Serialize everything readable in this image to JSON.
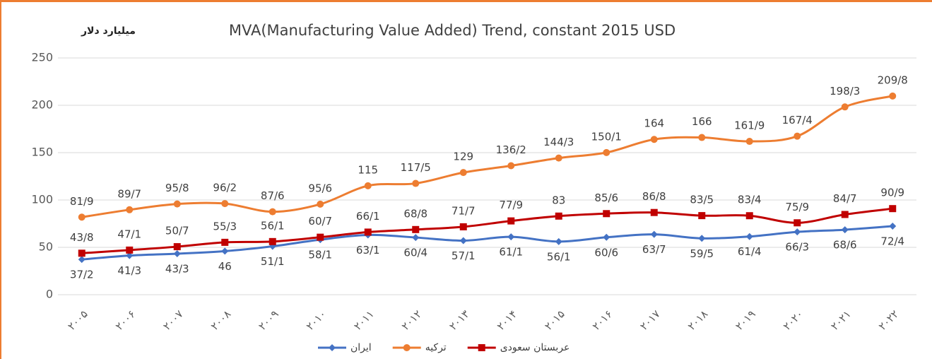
{
  "chart_data": {
    "type": "line",
    "title": "MVA(Manufacturing Value Added) Trend, constant 2015 USD",
    "y_label": "میلیارد دلار",
    "categories": [
      "۲۰۰۵",
      "۲۰۰۶",
      "۲۰۰۷",
      "۲۰۰۸",
      "۲۰۰۹",
      "۲۰۱۰",
      "۲۰۱۱",
      "۲۰۱۲",
      "۲۰۱۳",
      "۲۰۱۴",
      "۲۰۱۵",
      "۲۰۱۶",
      "۲۰۱۷",
      "۲۰۱۸",
      "۲۰۱۹",
      "۲۰۲۰",
      "۲۰۲۱",
      "۲۰۲۲"
    ],
    "series": [
      {
        "name": "ایران",
        "color": "#4472c4",
        "marker": "diamond",
        "label_position": "below",
        "values": [
          37.2,
          41.3,
          43.3,
          46,
          51.1,
          58.1,
          63.1,
          60.4,
          57.1,
          61.1,
          56.1,
          60.6,
          63.7,
          59.5,
          61.4,
          66.3,
          68.6,
          72.4
        ],
        "value_labels": [
          "37/2",
          "41/3",
          "43/3",
          "46",
          "51/1",
          "58/1",
          "63/1",
          "60/4",
          "57/1",
          "61/1",
          "56/1",
          "60/6",
          "63/7",
          "59/5",
          "61/4",
          "66/3",
          "68/6",
          "72/4"
        ]
      },
      {
        "name": "ترکیه",
        "color": "#ed7d31",
        "marker": "circle",
        "label_position": "above",
        "values": [
          81.9,
          89.7,
          95.8,
          96.2,
          87.6,
          95.6,
          115,
          117.5,
          129,
          136.2,
          144.3,
          150.1,
          164,
          166,
          161.9,
          167.4,
          198.3,
          209.8
        ],
        "value_labels": [
          "81/9",
          "89/7",
          "95/8",
          "96/2",
          "87/6",
          "95/6",
          "115",
          "117/5",
          "129",
          "136/2",
          "144/3",
          "150/1",
          "164",
          "166",
          "161/9",
          "167/4",
          "198/3",
          "209/8"
        ]
      },
      {
        "name": "عربستان سعودی",
        "color": "#c00000",
        "marker": "square",
        "label_position": "above",
        "values": [
          43.8,
          47.1,
          50.7,
          55.3,
          56.1,
          60.7,
          66.1,
          68.8,
          71.7,
          77.9,
          83,
          85.6,
          86.8,
          83.5,
          83.4,
          75.9,
          84.7,
          90.9
        ],
        "value_labels": [
          "43/8",
          "47/1",
          "50/7",
          "55/3",
          "56/1",
          "60/7",
          "66/1",
          "68/8",
          "71/7",
          "77/9",
          "83",
          "85/6",
          "86/8",
          "83/5",
          "83/4",
          "75/9",
          "84/7",
          "90/9"
        ]
      }
    ],
    "ylim": [
      0,
      250
    ],
    "yticks": [
      0,
      50,
      100,
      150,
      200,
      250
    ],
    "grid": true,
    "legend": "bottom"
  }
}
